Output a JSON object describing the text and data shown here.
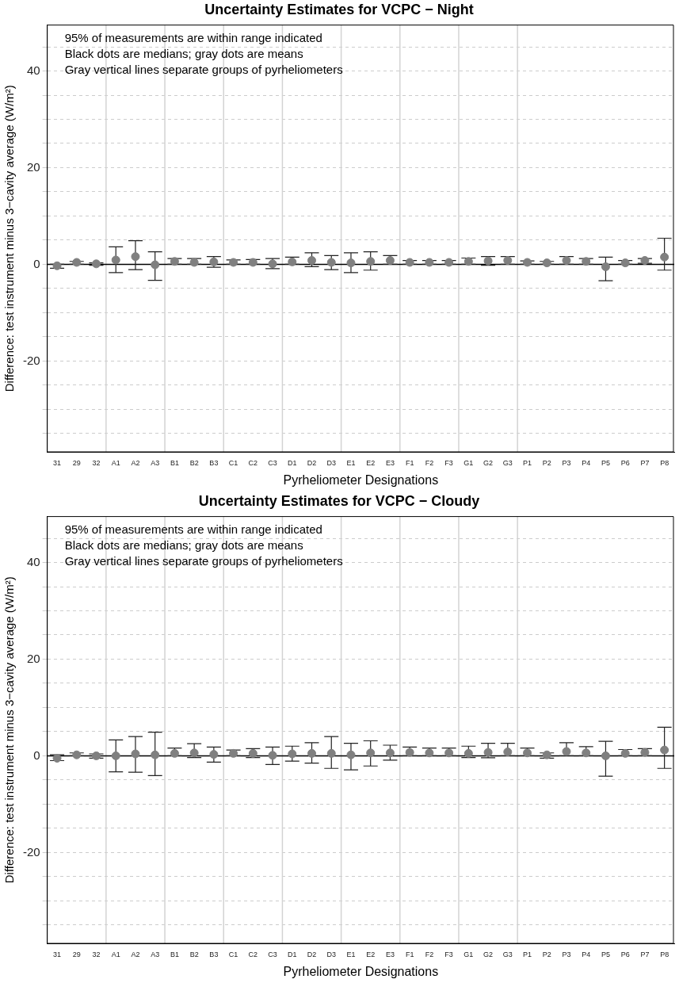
{
  "chart_data": [
    {
      "type": "scatter",
      "title": "Uncertainty Estimates for VCPC − Night",
      "xlabel": "Pyrheliometer Designations",
      "ylabel": "Difference: test instrument minus 3−cavity average (W/m²)",
      "categories": [
        "31",
        "29",
        "32",
        "A1",
        "A2",
        "A3",
        "B1",
        "B2",
        "B3",
        "C1",
        "C2",
        "C3",
        "D1",
        "D2",
        "D3",
        "E1",
        "E2",
        "E3",
        "F1",
        "F2",
        "F3",
        "G1",
        "G2",
        "G3",
        "P1",
        "P2",
        "P3",
        "P4",
        "P5",
        "P6",
        "P7",
        "P8"
      ],
      "series": [
        {
          "color": "#808080",
          "values": [
            -0.3,
            0.4,
            0.1,
            0.9,
            1.6,
            -0.1,
            0.6,
            0.4,
            0.5,
            0.4,
            0.4,
            0.1,
            0.5,
            0.8,
            0.4,
            0.3,
            0.6,
            0.8,
            0.4,
            0.4,
            0.4,
            0.6,
            0.7,
            0.8,
            0.4,
            0.3,
            0.8,
            0.6,
            -0.5,
            0.3,
            0.8,
            1.5
          ],
          "errors": [
            [
              -0.8,
              0
            ],
            [
              0,
              0.6
            ],
            [
              -0.2,
              0.3
            ],
            [
              -1.7,
              3.6
            ],
            [
              -1.1,
              4.9
            ],
            [
              -3.3,
              2.6
            ],
            [
              0,
              1.2
            ],
            [
              0,
              1.2
            ],
            [
              -0.6,
              1.6
            ],
            [
              0,
              0.9
            ],
            [
              0,
              1
            ],
            [
              -0.9,
              1.2
            ],
            [
              0,
              1.5
            ],
            [
              -0.5,
              2.4
            ],
            [
              -1.1,
              1.8
            ],
            [
              -1.7,
              2.4
            ],
            [
              -1.2,
              2.6
            ],
            [
              0,
              1.8
            ],
            [
              0,
              0.8
            ],
            [
              0,
              0.8
            ],
            [
              0,
              0.8
            ],
            [
              0,
              1.3
            ],
            [
              -0.2,
              1.6
            ],
            [
              0,
              1.6
            ],
            [
              0,
              0.7
            ],
            [
              0,
              0.6
            ],
            [
              0,
              1.6
            ],
            [
              0,
              1.2
            ],
            [
              -3.4,
              1.5
            ],
            [
              0,
              0.8
            ],
            [
              0.2,
              1.2
            ],
            [
              -1.2,
              5.4
            ]
          ]
        }
      ],
      "ylim": [
        -38.8,
        49.5
      ],
      "yticks": [
        {
          "value": -35,
          "label": null
        },
        {
          "value": -30,
          "label": null
        },
        {
          "value": -25,
          "label": null
        },
        -20,
        {
          "value": -15,
          "label": null
        },
        {
          "value": -10,
          "label": null
        },
        {
          "value": -5,
          "label": null
        },
        0,
        {
          "value": 5,
          "label": null
        },
        {
          "value": 10,
          "label": null
        },
        {
          "value": 15,
          "label": null
        },
        20,
        {
          "value": 25,
          "label": null
        },
        {
          "value": 30,
          "label": null
        },
        {
          "value": 35,
          "label": null
        },
        40,
        {
          "value": 45,
          "label": null
        }
      ],
      "grid": "y",
      "legend": false,
      "marker": "circle",
      "ref_lines": [
        {
          "axis": "y",
          "value": 0,
          "color": "#000000"
        }
      ],
      "annotations": [
        "95% of measurements are within range indicated",
        "Black dots are medians; gray dots are means",
        "Gray vertical lines separate groups of pyrheliometers"
      ]
    },
    {
      "type": "scatter",
      "title": "Uncertainty Estimates for VCPC − Cloudy",
      "xlabel": "Pyrheliometer Designations",
      "ylabel": "Difference: test instrument minus 3−cavity average (W/m²)",
      "categories": [
        "31",
        "29",
        "32",
        "A1",
        "A2",
        "A3",
        "B1",
        "B2",
        "B3",
        "C1",
        "C2",
        "C3",
        "D1",
        "D2",
        "D3",
        "E1",
        "E2",
        "E3",
        "F1",
        "F2",
        "F3",
        "G1",
        "G2",
        "G3",
        "P1",
        "P2",
        "P3",
        "P4",
        "P5",
        "P6",
        "P7",
        "P8"
      ],
      "series": [
        {
          "color": "#808080",
          "values": [
            -0.5,
            0.2,
            0,
            0,
            0.4,
            0.2,
            0.5,
            0.6,
            0.3,
            0.5,
            0.5,
            0.1,
            0.4,
            0.5,
            0.5,
            0.2,
            0.6,
            0.6,
            0.7,
            0.6,
            0.6,
            0.5,
            0.7,
            0.8,
            0.6,
            0.2,
            0.9,
            0.6,
            0,
            0.5,
            0.7,
            1.2
          ],
          "errors": [
            [
              -1,
              0.2
            ],
            [
              0,
              0.6
            ],
            [
              -0.5,
              0.4
            ],
            [
              -3.3,
              3.3
            ],
            [
              -3.4,
              4
            ],
            [
              -4.1,
              4.9
            ],
            [
              0,
              1.6
            ],
            [
              -0.35,
              2.5
            ],
            [
              -1.3,
              1.8
            ],
            [
              0,
              1.2
            ],
            [
              -0.35,
              1.5
            ],
            [
              -1.8,
              1.8
            ],
            [
              -1.1,
              2
            ],
            [
              -1.5,
              2.7
            ],
            [
              -2.6,
              4
            ],
            [
              -2.9,
              2.6
            ],
            [
              -2.1,
              3.1
            ],
            [
              -0.9,
              2.2
            ],
            [
              0,
              1.8
            ],
            [
              0,
              1.6
            ],
            [
              0,
              1.6
            ],
            [
              -0.35,
              2
            ],
            [
              -0.4,
              2.6
            ],
            [
              0,
              2.6
            ],
            [
              0,
              1.6
            ],
            [
              -0.5,
              0.6
            ],
            [
              0,
              2.7
            ],
            [
              0,
              1.9
            ],
            [
              -4.2,
              3
            ],
            [
              0,
              1.3
            ],
            [
              0,
              1.5
            ],
            [
              -2.6,
              5.9
            ]
          ]
        }
      ],
      "ylim": [
        -38.8,
        49.5
      ],
      "yticks": [
        {
          "value": -35,
          "label": null
        },
        {
          "value": -30,
          "label": null
        },
        {
          "value": -25,
          "label": null
        },
        -20,
        {
          "value": -15,
          "label": null
        },
        {
          "value": -10,
          "label": null
        },
        {
          "value": -5,
          "label": null
        },
        0,
        {
          "value": 5,
          "label": null
        },
        {
          "value": 10,
          "label": null
        },
        {
          "value": 15,
          "label": null
        },
        20,
        {
          "value": 25,
          "label": null
        },
        {
          "value": 30,
          "label": null
        },
        {
          "value": 35,
          "label": null
        },
        40,
        {
          "value": 45,
          "label": null
        }
      ],
      "grid": "y",
      "legend": false,
      "marker": "circle",
      "ref_lines": [
        {
          "axis": "y",
          "value": 0,
          "color": "#000000"
        }
      ],
      "annotations": [
        "95% of measurements are within range indicated",
        "Black dots are medians; gray dots are means",
        "Gray vertical lines separate groups of pyrheliometers"
      ]
    }
  ]
}
